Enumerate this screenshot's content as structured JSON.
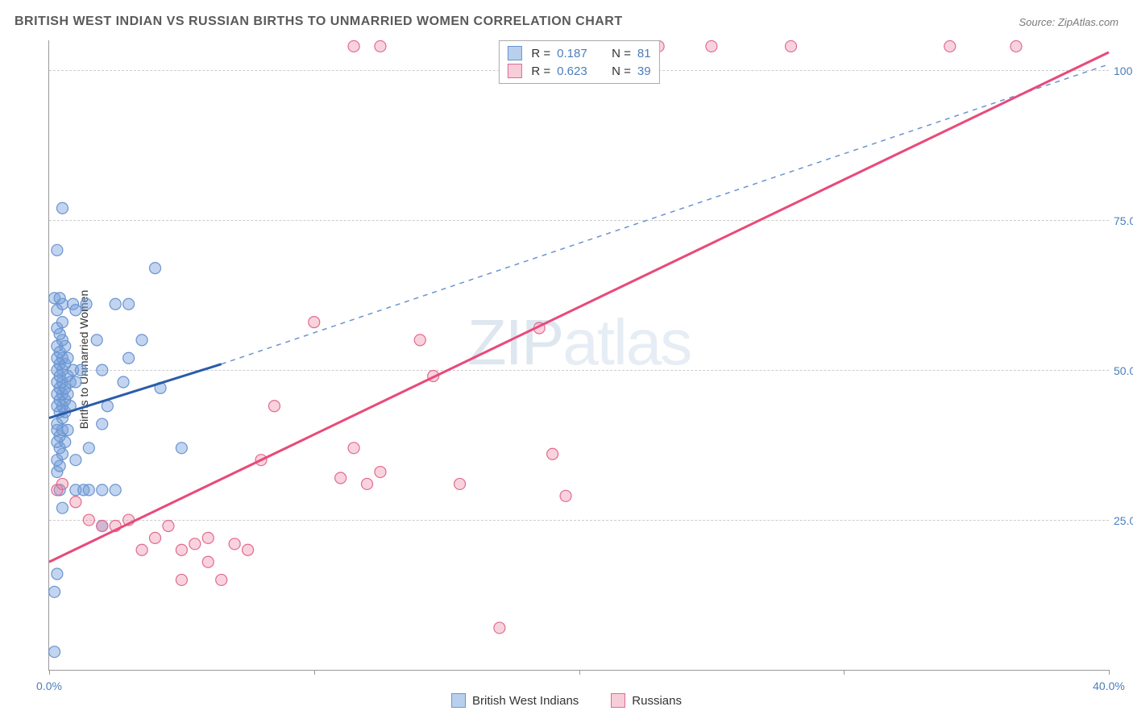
{
  "header": {
    "title": "BRITISH WEST INDIAN VS RUSSIAN BIRTHS TO UNMARRIED WOMEN CORRELATION CHART",
    "source": "Source: ZipAtlas.com"
  },
  "chart": {
    "type": "scatter",
    "y_axis_label": "Births to Unmarried Women",
    "watermark_text": "ZIPatlas",
    "background_color": "#ffffff",
    "grid_color": "#cccccc",
    "axis_color": "#999999",
    "label_color": "#4a7ebb",
    "xlim": [
      0,
      40
    ],
    "ylim": [
      0,
      105
    ],
    "x_ticks": [
      {
        "pos": 0.0,
        "label": "0.0%"
      },
      {
        "pos": 10,
        "label": ""
      },
      {
        "pos": 20,
        "label": ""
      },
      {
        "pos": 30,
        "label": ""
      },
      {
        "pos": 40,
        "label": "40.0%"
      }
    ],
    "y_ticks": [
      {
        "pos": 25,
        "label": "25.0%"
      },
      {
        "pos": 50,
        "label": "50.0%"
      },
      {
        "pos": 75,
        "label": "75.0%"
      },
      {
        "pos": 100,
        "label": "100.0%"
      }
    ],
    "series": [
      {
        "name": "British West Indians",
        "marker_color_fill": "rgba(120,160,220,0.45)",
        "marker_color_stroke": "#6a95d0",
        "marker_radius": 7,
        "line_color": "#2a5caa",
        "line_dash_extend_color": "#6a95d0",
        "trend_solid": {
          "x1": 0,
          "y1": 42,
          "x2": 6.5,
          "y2": 51
        },
        "trend_dash": {
          "x1": 6.5,
          "y1": 51,
          "x2": 40,
          "y2": 101
        },
        "R": "0.187",
        "N": "81",
        "points": [
          [
            0.2,
            3
          ],
          [
            0.2,
            13
          ],
          [
            0.3,
            16
          ],
          [
            0.5,
            27
          ],
          [
            0.4,
            30
          ],
          [
            0.3,
            33
          ],
          [
            0.4,
            34
          ],
          [
            0.3,
            35
          ],
          [
            0.5,
            36
          ],
          [
            0.4,
            37
          ],
          [
            0.3,
            38
          ],
          [
            0.6,
            38
          ],
          [
            0.4,
            39
          ],
          [
            0.3,
            40
          ],
          [
            0.5,
            40
          ],
          [
            0.7,
            40
          ],
          [
            0.3,
            41
          ],
          [
            0.5,
            42
          ],
          [
            0.4,
            43
          ],
          [
            0.6,
            43
          ],
          [
            0.3,
            44
          ],
          [
            0.5,
            44
          ],
          [
            0.8,
            44
          ],
          [
            0.4,
            45
          ],
          [
            0.6,
            45
          ],
          [
            0.3,
            46
          ],
          [
            0.5,
            46
          ],
          [
            0.7,
            46
          ],
          [
            0.4,
            47
          ],
          [
            0.6,
            47
          ],
          [
            0.3,
            48
          ],
          [
            0.5,
            48
          ],
          [
            0.8,
            48
          ],
          [
            0.4,
            49
          ],
          [
            0.7,
            49
          ],
          [
            0.3,
            50
          ],
          [
            0.5,
            50
          ],
          [
            0.9,
            50
          ],
          [
            0.4,
            51
          ],
          [
            0.6,
            51
          ],
          [
            0.3,
            52
          ],
          [
            0.5,
            52
          ],
          [
            0.7,
            52
          ],
          [
            0.4,
            53
          ],
          [
            0.3,
            54
          ],
          [
            0.6,
            54
          ],
          [
            0.5,
            55
          ],
          [
            0.4,
            56
          ],
          [
            0.3,
            57
          ],
          [
            0.5,
            58
          ],
          [
            0.3,
            60
          ],
          [
            0.5,
            61
          ],
          [
            0.9,
            61
          ],
          [
            1.4,
            61
          ],
          [
            0.2,
            62
          ],
          [
            0.4,
            62
          ],
          [
            0.3,
            70
          ],
          [
            0.5,
            77
          ],
          [
            1.0,
            30
          ],
          [
            1.3,
            30
          ],
          [
            1.5,
            30
          ],
          [
            2.0,
            30
          ],
          [
            1.0,
            35
          ],
          [
            1.5,
            37
          ],
          [
            2.0,
            41
          ],
          [
            2.2,
            44
          ],
          [
            2.8,
            48
          ],
          [
            1.0,
            48
          ],
          [
            1.2,
            50
          ],
          [
            2.0,
            50
          ],
          [
            3.0,
            52
          ],
          [
            3.5,
            55
          ],
          [
            4.0,
            67
          ],
          [
            4.2,
            47
          ],
          [
            5.0,
            37
          ],
          [
            3.0,
            61
          ],
          [
            2.5,
            61
          ],
          [
            1.8,
            55
          ],
          [
            1.0,
            60
          ],
          [
            2.0,
            24
          ],
          [
            2.5,
            30
          ]
        ]
      },
      {
        "name": "Russians",
        "marker_color_fill": "rgba(235,130,160,0.35)",
        "marker_color_stroke": "#e26a8f",
        "marker_radius": 7,
        "line_color": "#e84a7a",
        "trend_solid": {
          "x1": 0,
          "y1": 18,
          "x2": 40,
          "y2": 103
        },
        "R": "0.623",
        "N": "39",
        "points": [
          [
            0.3,
            30
          ],
          [
            0.5,
            31
          ],
          [
            1.0,
            28
          ],
          [
            1.5,
            25
          ],
          [
            2.0,
            24
          ],
          [
            2.5,
            24
          ],
          [
            3.0,
            25
          ],
          [
            3.5,
            20
          ],
          [
            4.0,
            22
          ],
          [
            4.5,
            24
          ],
          [
            5.0,
            15
          ],
          [
            5.5,
            21
          ],
          [
            6.0,
            18
          ],
          [
            6.5,
            15
          ],
          [
            7.0,
            21
          ],
          [
            7.5,
            20
          ],
          [
            8.5,
            44
          ],
          [
            10.0,
            58
          ],
          [
            11.0,
            32
          ],
          [
            11.5,
            37
          ],
          [
            12.0,
            31
          ],
          [
            12.5,
            33
          ],
          [
            11.5,
            104
          ],
          [
            12.5,
            104
          ],
          [
            14.0,
            55
          ],
          [
            14.5,
            49
          ],
          [
            15.5,
            31
          ],
          [
            17.0,
            7
          ],
          [
            18.5,
            57
          ],
          [
            19.0,
            36
          ],
          [
            19.5,
            29
          ],
          [
            23.0,
            104
          ],
          [
            25.0,
            104
          ],
          [
            28.0,
            104
          ],
          [
            34.0,
            104
          ],
          [
            36.5,
            104
          ],
          [
            5.0,
            20
          ],
          [
            6.0,
            22
          ],
          [
            8.0,
            35
          ]
        ]
      }
    ],
    "legend_top": {
      "swatch_blue_fill": "#b8d0ee",
      "swatch_blue_stroke": "#6a95d0",
      "swatch_pink_fill": "#f7cdd9",
      "swatch_pink_stroke": "#e26a8f",
      "r_label": "R  =",
      "n_label": "N  ="
    },
    "legend_bottom": {
      "item1": "British West Indians",
      "item2": "Russians"
    }
  }
}
